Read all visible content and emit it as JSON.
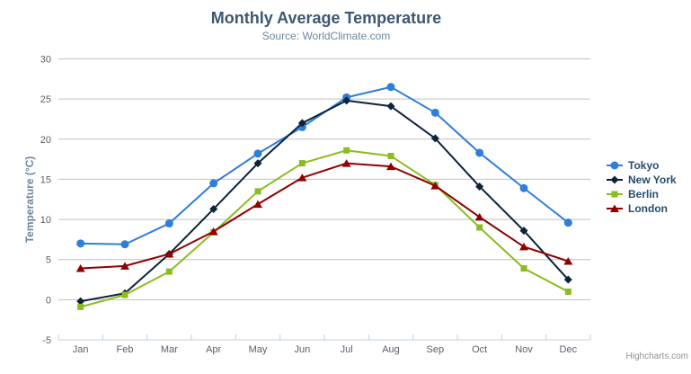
{
  "header": {
    "title": "Monthly Average Temperature",
    "subtitle": "Source: WorldClimate.com"
  },
  "menu": {
    "icon": "hamburger-icon"
  },
  "credits": {
    "label": "Highcharts.com"
  },
  "colors": {
    "title": "#3E576F",
    "subtitle": "#6D869F",
    "axis_labels": "#606060",
    "axis_title": "#6D869F",
    "gridline": "#C0C0C0",
    "axis_line": "#C0D0E0",
    "legend_text": "#274b6d",
    "menu_icon": "#666666",
    "credits_text": "#909090"
  },
  "chart_data": {
    "type": "line",
    "title": "Monthly Average Temperature",
    "subtitle": "Source: WorldClimate.com",
    "categories": [
      "Jan",
      "Feb",
      "Mar",
      "Apr",
      "May",
      "Jun",
      "Jul",
      "Aug",
      "Sep",
      "Oct",
      "Nov",
      "Dec"
    ],
    "xlabel": "",
    "ylabel": "Temperature (°C)",
    "ylim": [
      -5,
      30
    ],
    "yticks": [
      -5,
      0,
      5,
      10,
      15,
      20,
      25,
      30
    ],
    "grid": true,
    "legend_position": "right",
    "series": [
      {
        "name": "Tokyo",
        "color": "#2f7ed8",
        "marker": "circle",
        "values": [
          7.0,
          6.9,
          9.5,
          14.5,
          18.2,
          21.5,
          25.2,
          26.5,
          23.3,
          18.3,
          13.9,
          9.6
        ]
      },
      {
        "name": "New York",
        "color": "#0d233a",
        "marker": "diamond",
        "values": [
          -0.2,
          0.8,
          5.7,
          11.3,
          17.0,
          22.0,
          24.8,
          24.1,
          20.1,
          14.1,
          8.6,
          2.5
        ]
      },
      {
        "name": "Berlin",
        "color": "#8bbc21",
        "marker": "square",
        "values": [
          -0.9,
          0.6,
          3.5,
          8.4,
          13.5,
          17.0,
          18.6,
          17.9,
          14.3,
          9.0,
          3.9,
          1.0
        ]
      },
      {
        "name": "London",
        "color": "#910000",
        "marker": "triangle",
        "values": [
          3.9,
          4.2,
          5.7,
          8.5,
          11.9,
          15.2,
          17.0,
          16.6,
          14.2,
          10.3,
          6.6,
          4.8
        ]
      }
    ]
  }
}
